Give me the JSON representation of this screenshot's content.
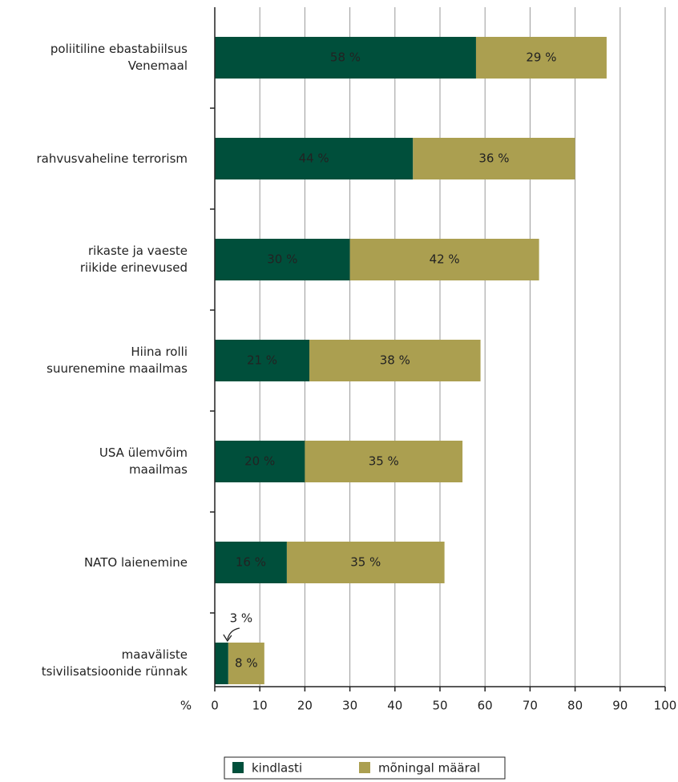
{
  "chart_data": {
    "type": "stacked_bar_horizontal",
    "categories": [
      "poliitiline ebastabiilsus\nVenemaal",
      "rahvusvaheline terrorism",
      "rikaste ja vaeste\nriikide erinevused",
      "Hiina rolli\nsuurenemine maailmas",
      "USA ülemvõim\nmaailmas",
      "NATO laienemine",
      "maaväliste\ntsivilisatsioonide rünnak"
    ],
    "series": [
      {
        "name": "kindlasti",
        "color": "#004f3b",
        "values": [
          58,
          44,
          30,
          21,
          20,
          16,
          3
        ],
        "value_labels": [
          "58 %",
          "44 %",
          "30 %",
          "21 %",
          "20 %",
          "16 %",
          "3 %"
        ]
      },
      {
        "name": "mõningal määral",
        "color": "#ab9f50",
        "values": [
          29,
          36,
          42,
          38,
          35,
          35,
          8
        ],
        "value_labels": [
          "29 %",
          "36 %",
          "42 %",
          "38 %",
          "35 %",
          "35 %",
          "8 %"
        ]
      }
    ],
    "xlabel": "%",
    "xlim": [
      0,
      100
    ],
    "xticks": [
      0,
      10,
      20,
      30,
      40,
      50,
      60,
      70,
      80,
      90,
      100
    ],
    "grid": true
  }
}
